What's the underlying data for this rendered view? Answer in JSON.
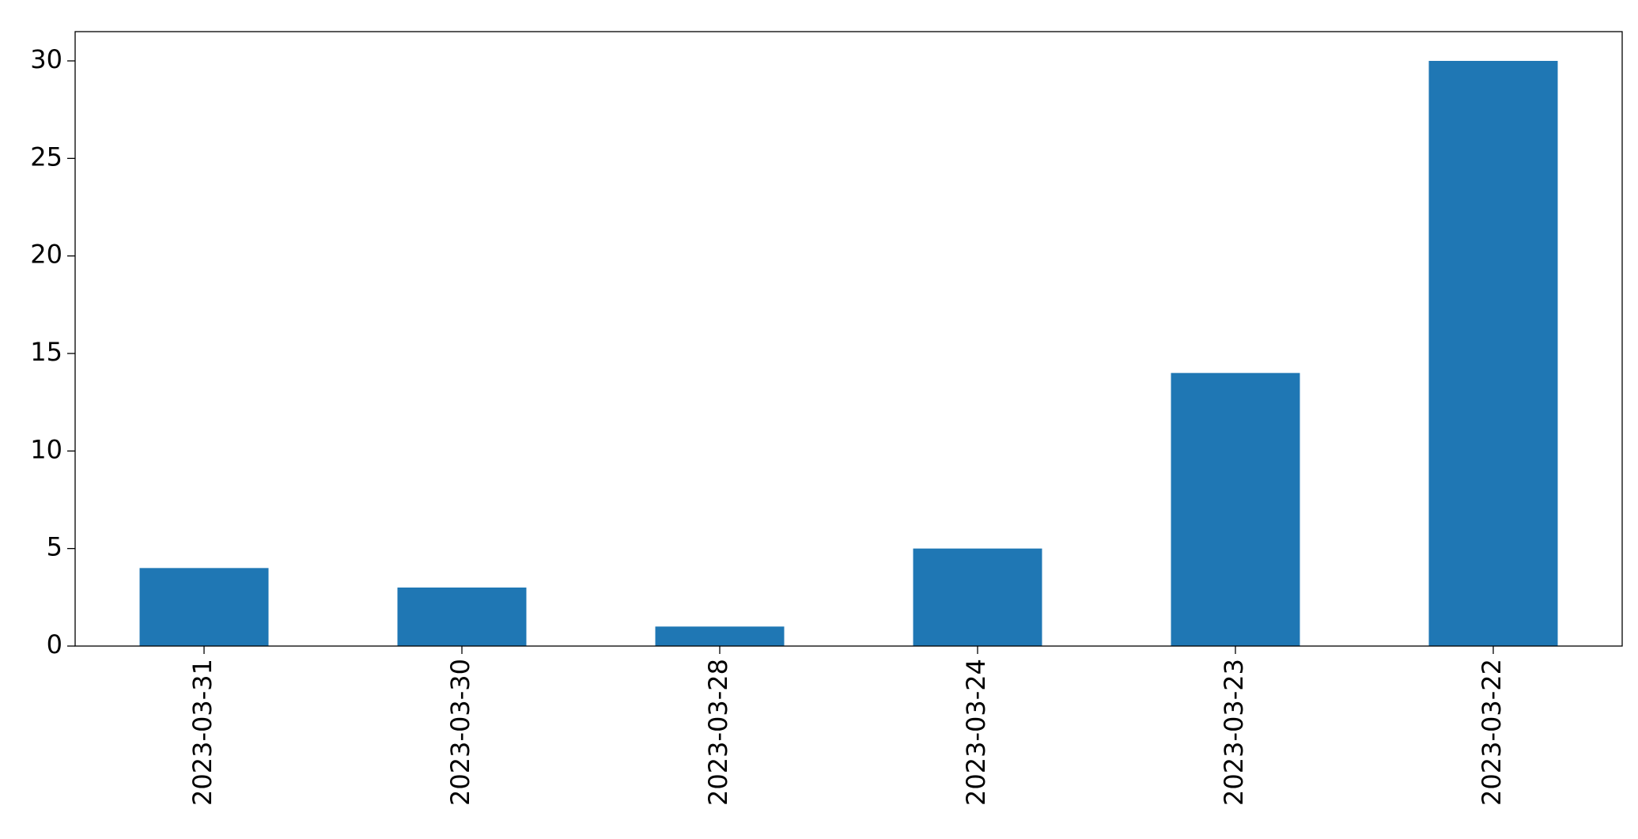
{
  "chart_data": {
    "type": "bar",
    "categories": [
      "2023-03-31",
      "2023-03-30",
      "2023-03-28",
      "2023-03-24",
      "2023-03-23",
      "2023-03-22"
    ],
    "values": [
      4,
      3,
      1,
      5,
      14,
      30
    ],
    "color": "#1f77b4",
    "ylim": [
      0,
      31.5
    ],
    "yticks": [
      0,
      5,
      10,
      15,
      20,
      25,
      30
    ],
    "grid": false
  }
}
